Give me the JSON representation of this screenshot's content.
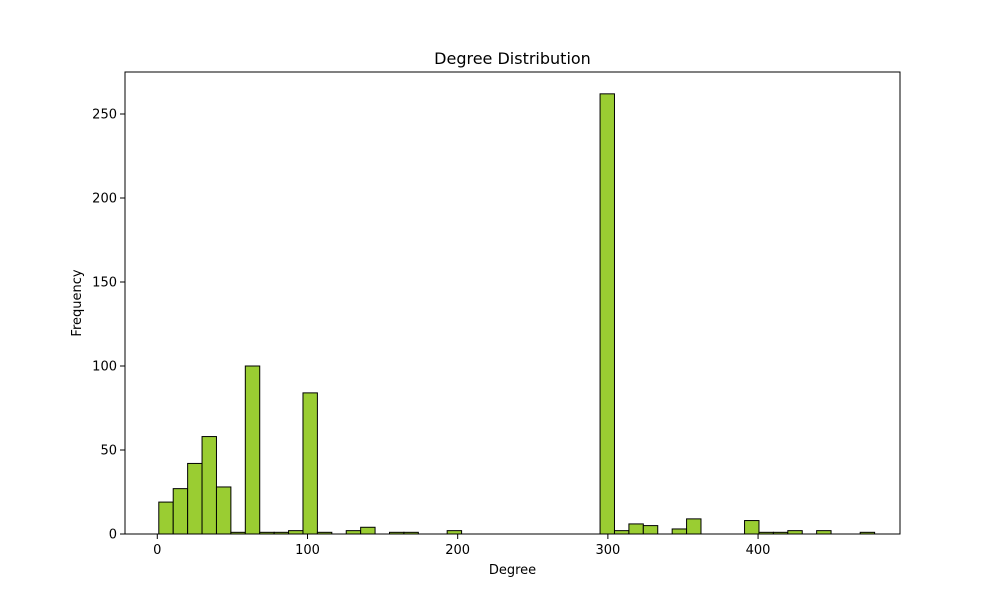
{
  "chart_data": {
    "type": "bar",
    "title": "Degree Distribution",
    "xlabel": "Degree",
    "ylabel": "Frequency",
    "xlim": [
      -21.5,
      494.5
    ],
    "ylim": [
      0,
      275
    ],
    "grid": false,
    "bar_color": "#9acd32",
    "edge_color": "#000000",
    "bin_width": 9.6,
    "bins": [
      {
        "x": 1,
        "value": 19
      },
      {
        "x": 10.6,
        "value": 27
      },
      {
        "x": 20.2,
        "value": 42
      },
      {
        "x": 29.8,
        "value": 58
      },
      {
        "x": 39.4,
        "value": 28
      },
      {
        "x": 49,
        "value": 1
      },
      {
        "x": 58.6,
        "value": 100
      },
      {
        "x": 68.2,
        "value": 1
      },
      {
        "x": 77.8,
        "value": 1
      },
      {
        "x": 87.4,
        "value": 2
      },
      {
        "x": 97,
        "value": 84
      },
      {
        "x": 106.6,
        "value": 1
      },
      {
        "x": 125.8,
        "value": 2
      },
      {
        "x": 135.4,
        "value": 4
      },
      {
        "x": 154.6,
        "value": 1
      },
      {
        "x": 164.2,
        "value": 1
      },
      {
        "x": 193,
        "value": 2
      },
      {
        "x": 294.8,
        "value": 262
      },
      {
        "x": 304.4,
        "value": 2
      },
      {
        "x": 314,
        "value": 6
      },
      {
        "x": 323.6,
        "value": 5
      },
      {
        "x": 342.8,
        "value": 3
      },
      {
        "x": 352.4,
        "value": 9
      },
      {
        "x": 391,
        "value": 8
      },
      {
        "x": 400.6,
        "value": 1
      },
      {
        "x": 410.2,
        "value": 1
      },
      {
        "x": 419.8,
        "value": 2
      },
      {
        "x": 439,
        "value": 2
      },
      {
        "x": 468,
        "value": 1
      }
    ],
    "x_ticks": [
      0,
      100,
      200,
      300,
      400
    ],
    "x_tick_labels": [
      "0",
      "100",
      "200",
      "300",
      "400"
    ],
    "y_ticks": [
      0,
      50,
      100,
      150,
      200,
      250
    ],
    "y_tick_labels": [
      "0",
      "50",
      "100",
      "150",
      "200",
      "250"
    ]
  }
}
